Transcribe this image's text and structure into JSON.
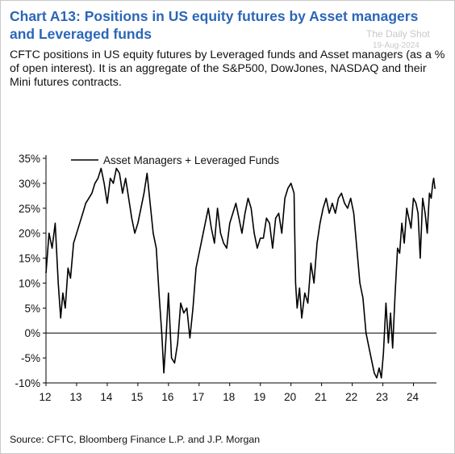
{
  "header": {
    "title": "Chart A13: Positions in US equity futures by Asset managers and Leveraged funds",
    "subtitle": "CFTC positions in US equity futures by Leveraged funds and Asset managers (as a % of open interest). It is an aggregate of the S&P500, DowJones, NASDAQ and their Mini futures contracts.",
    "watermark": "The Daily Shot",
    "watermark_date": "19-Aug-2024"
  },
  "footer": {
    "source": "Source: CFTC, Bloomberg Finance L.P. and J.P. Morgan"
  },
  "chart_data": {
    "type": "line",
    "title": "",
    "xlabel": "",
    "ylabel": "",
    "x_ticks": [
      "12",
      "13",
      "14",
      "15",
      "16",
      "17",
      "18",
      "19",
      "20",
      "21",
      "22",
      "23",
      "24"
    ],
    "y_ticks": [
      "35%",
      "30%",
      "25%",
      "20%",
      "15%",
      "10%",
      "5%",
      "0%",
      "-5%",
      "-10%"
    ],
    "ylim": [
      -10,
      35
    ],
    "xlim": [
      2012.0,
      2024.75
    ],
    "grid": false,
    "legend_position": "top",
    "line_color": "#000000",
    "series": [
      {
        "name": "Asset Managers + Leveraged Funds",
        "x": [
          2012.0,
          2012.1,
          2012.2,
          2012.3,
          2012.4,
          2012.48,
          2012.55,
          2012.63,
          2012.72,
          2012.8,
          2012.9,
          2013.0,
          2013.1,
          2013.2,
          2013.3,
          2013.4,
          2013.5,
          2013.6,
          2013.7,
          2013.8,
          2013.9,
          2014.0,
          2014.1,
          2014.2,
          2014.3,
          2014.4,
          2014.5,
          2014.6,
          2014.7,
          2014.8,
          2014.9,
          2015.0,
          2015.1,
          2015.2,
          2015.3,
          2015.4,
          2015.5,
          2015.6,
          2015.7,
          2015.78,
          2015.85,
          2015.92,
          2016.0,
          2016.1,
          2016.2,
          2016.3,
          2016.4,
          2016.5,
          2016.6,
          2016.7,
          2016.8,
          2016.9,
          2017.0,
          2017.1,
          2017.2,
          2017.3,
          2017.4,
          2017.5,
          2017.6,
          2017.7,
          2017.8,
          2017.9,
          2018.0,
          2018.1,
          2018.2,
          2018.3,
          2018.4,
          2018.5,
          2018.6,
          2018.7,
          2018.8,
          2018.9,
          2019.0,
          2019.1,
          2019.2,
          2019.3,
          2019.4,
          2019.5,
          2019.6,
          2019.7,
          2019.8,
          2019.9,
          2020.0,
          2020.1,
          2020.15,
          2020.2,
          2020.28,
          2020.35,
          2020.45,
          2020.55,
          2020.65,
          2020.75,
          2020.85,
          2020.95,
          2021.05,
          2021.15,
          2021.25,
          2021.35,
          2021.45,
          2021.55,
          2021.65,
          2021.75,
          2021.85,
          2021.95,
          2022.05,
          2022.15,
          2022.25,
          2022.35,
          2022.45,
          2022.55,
          2022.65,
          2022.72,
          2022.8,
          2022.88,
          2022.95,
          2023.02,
          2023.1,
          2023.18,
          2023.25,
          2023.32,
          2023.4,
          2023.48,
          2023.55,
          2023.62,
          2023.7,
          2023.78,
          2023.85,
          2023.92,
          2024.0,
          2024.08,
          2024.15,
          2024.22,
          2024.3,
          2024.38,
          2024.45,
          2024.52,
          2024.58,
          2024.63,
          2024.66,
          2024.7,
          2024.72
        ],
        "values": [
          12,
          20,
          17,
          22,
          10,
          3,
          8,
          5,
          13,
          11,
          18,
          20,
          22,
          24,
          26,
          27,
          28,
          30,
          31,
          33,
          30,
          26,
          31,
          30,
          33,
          32,
          28,
          31,
          27,
          23,
          20,
          22,
          25,
          28,
          32,
          26,
          20,
          17,
          7,
          0,
          -8,
          -1,
          8,
          -5,
          -6,
          -2,
          6,
          4,
          5,
          -1,
          5,
          13,
          16,
          19,
          22,
          25,
          21,
          18,
          25,
          20,
          18,
          17,
          22,
          24,
          26,
          23,
          20,
          24,
          27,
          25,
          20,
          17,
          19,
          19,
          23,
          22,
          17,
          23,
          24,
          20,
          27,
          29,
          30,
          28,
          10,
          5,
          9,
          3,
          8,
          6,
          14,
          10,
          18,
          22,
          25,
          27,
          24,
          26,
          24,
          27,
          28,
          26,
          25,
          27,
          24,
          17,
          10,
          7,
          0,
          -3,
          -6,
          -8,
          -9,
          -7,
          -9,
          -4,
          6,
          -2,
          4,
          -3,
          8,
          17,
          16,
          22,
          18,
          25,
          23,
          21,
          27,
          26,
          24,
          15,
          27,
          24,
          20,
          28,
          27,
          30,
          31,
          29,
          29
        ]
      }
    ]
  }
}
